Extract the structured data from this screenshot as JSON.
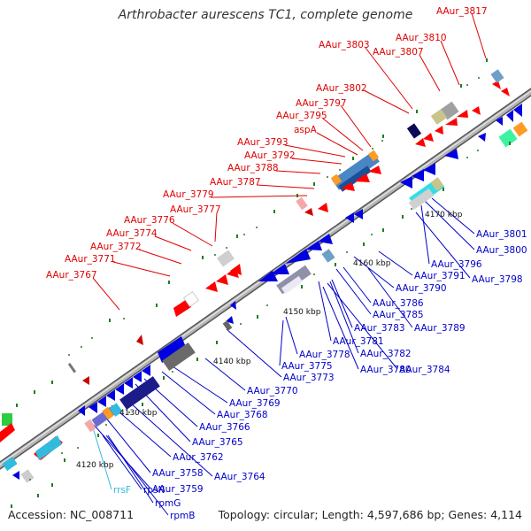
{
  "title": "Arthrobacter aurescens TC1, complete genome",
  "footer": {
    "accession": "Accession: NC_008711",
    "summary": "Topology: circular; Length: 4,597,686 bp; Genes: 4,114"
  },
  "colors": {
    "forward_label": "#e00000",
    "reverse_label": "#0000c8",
    "rna_label": "#33bbdd",
    "backbone": "#8c8c8c"
  },
  "ruler_labels": [
    "4120 kbp",
    "4130 kbp",
    "4140 kbp",
    "4150 kbp",
    "4160 kbp",
    "4170 kbp"
  ],
  "forward_genes": [
    "AAur_3817",
    "AAur_3810",
    "AAur_3803",
    "AAur_3807",
    "AAur_3802",
    "AAur_3797",
    "AAur_3795",
    "aspA",
    "AAur_3793",
    "AAur_3792",
    "AAur_3788",
    "AAur_3787",
    "AAur_3779",
    "AAur_3777",
    "AAur_3776",
    "AAur_3774",
    "AAur_3772",
    "AAur_3771",
    "AAur_3767"
  ],
  "reverse_genes": [
    "AAur_3801",
    "AAur_3800",
    "AAur_3796",
    "AAur_3798",
    "AAur_3791",
    "AAur_3790",
    "AAur_3786",
    "AAur_3785",
    "AAur_3789",
    "AAur_3783",
    "AAur_3781",
    "AAur_3782",
    "AAur_3778",
    "AAur_3775",
    "AAur_3780",
    "AAur_3784",
    "AAur_3773",
    "AAur_3770",
    "AAur_3769",
    "AAur_3768",
    "AAur_3766",
    "AAur_3765",
    "AAur_3762",
    "AAur_3764",
    "AAur_3758",
    "AAur_3759"
  ],
  "rna_genes": [
    "rrsF",
    "rpsN",
    "rpmG",
    "rpmB"
  ]
}
